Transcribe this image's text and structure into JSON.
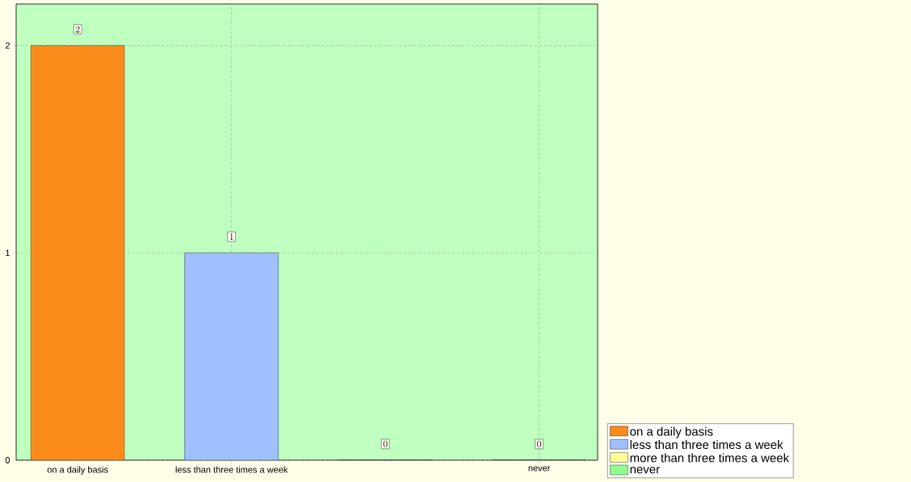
{
  "chart_data": {
    "type": "bar",
    "categories": [
      "on a daily basis",
      "less than three times a week",
      null,
      "never"
    ],
    "series": [
      {
        "name": "on a daily basis",
        "color": "#fb8c1c",
        "values": [
          2,
          null,
          null,
          null
        ]
      },
      {
        "name": "less than three times a week",
        "color": "#a0bfff",
        "values": [
          null,
          1,
          null,
          null
        ]
      },
      {
        "name": "more than three times a week",
        "color": "#ffff99",
        "values": [
          null,
          null,
          0,
          null
        ]
      },
      {
        "name": "never",
        "color": "#90ff90",
        "values": [
          null,
          null,
          null,
          0
        ]
      }
    ],
    "ylim": [
      0,
      2.2
    ],
    "yticks": [
      0,
      1,
      2
    ],
    "grid": true,
    "data_labels": true,
    "legend": "bottom right"
  }
}
